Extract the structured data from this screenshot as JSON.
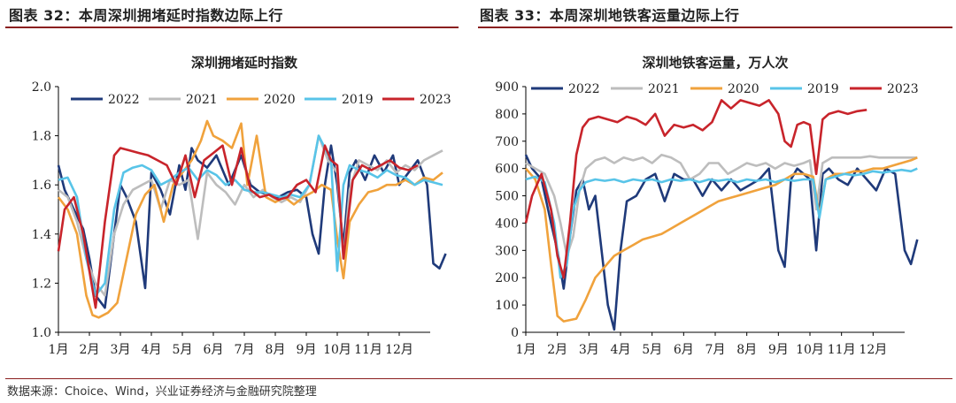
{
  "figure_left": {
    "header": "图表 32：本周深圳拥堵延时指数边际上行"
  },
  "figure_right": {
    "header": "图表 33：本周深圳地铁客运量边际上行"
  },
  "source": "数据来源：Choice、Wind，兴业证券经济与金融研究院整理",
  "chart_data": [
    {
      "type": "line",
      "title": "深圳拥堵延时指数",
      "xlabel": "",
      "ylabel": "",
      "ylim": [
        1.0,
        2.0
      ],
      "yticks": [
        "1.0",
        "1.2",
        "1.4",
        "1.6",
        "1.8",
        "2.0"
      ],
      "xticks": [
        "1月",
        "2月",
        "3月",
        "4月",
        "5月",
        "6月",
        "7月",
        "8月",
        "9月",
        "10月",
        "11月",
        "12月"
      ],
      "grid": false,
      "legend": "top",
      "series": [
        {
          "name": "2022",
          "color": "#1f3a7a",
          "x": [
            1,
            1.2,
            1.5,
            1.8,
            2.0,
            2.2,
            2.5,
            2.8,
            3.0,
            3.2,
            3.5,
            3.8,
            4.0,
            4.3,
            4.6,
            4.9,
            5.1,
            5.3,
            5.5,
            5.8,
            6.1,
            6.5,
            6.9,
            7.2,
            7.5,
            7.8,
            8.1,
            8.4,
            8.7,
            9.0,
            9.2,
            9.4,
            9.6,
            9.8,
            10.0,
            10.2,
            10.4,
            10.6,
            10.9,
            11.2,
            11.5,
            11.8,
            12.0,
            12.3,
            12.6,
            12.9,
            13.1,
            13.3,
            13.5
          ],
          "y": [
            1.68,
            1.58,
            1.5,
            1.42,
            1.3,
            1.15,
            1.1,
            1.4,
            1.6,
            1.55,
            1.45,
            1.18,
            1.65,
            1.58,
            1.48,
            1.68,
            1.58,
            1.75,
            1.7,
            1.67,
            1.72,
            1.6,
            1.72,
            1.6,
            1.57,
            1.56,
            1.55,
            1.57,
            1.58,
            1.55,
            1.4,
            1.32,
            1.6,
            1.76,
            1.6,
            1.35,
            1.65,
            1.7,
            1.62,
            1.72,
            1.65,
            1.72,
            1.6,
            1.65,
            1.7,
            1.6,
            1.28,
            1.26,
            1.32
          ]
        },
        {
          "name": "2021",
          "color": "#bdbdbd",
          "x": [
            1,
            1.3,
            1.6,
            1.9,
            2.2,
            2.5,
            2.8,
            3.1,
            3.4,
            3.7,
            4.0,
            4.3,
            4.6,
            4.9,
            5.2,
            5.5,
            5.8,
            6.1,
            6.4,
            6.7,
            7.0,
            7.3,
            7.6,
            7.9,
            8.2,
            8.5,
            8.8,
            9.1,
            9.4,
            9.7,
            10.0,
            10.2,
            10.4,
            10.7,
            11.0,
            11.3,
            11.6,
            11.9,
            12.2,
            12.5,
            12.8,
            13.1,
            13.4
          ],
          "y": [
            1.58,
            1.55,
            1.45,
            1.3,
            1.2,
            1.15,
            1.4,
            1.52,
            1.58,
            1.6,
            1.62,
            1.5,
            1.62,
            1.6,
            1.62,
            1.38,
            1.65,
            1.6,
            1.57,
            1.52,
            1.6,
            1.55,
            1.58,
            1.55,
            1.53,
            1.55,
            1.53,
            1.6,
            1.8,
            1.7,
            1.65,
            1.3,
            1.58,
            1.7,
            1.68,
            1.66,
            1.7,
            1.65,
            1.68,
            1.66,
            1.7,
            1.72,
            1.74
          ]
        },
        {
          "name": "2020",
          "color": "#f0a23c",
          "x": [
            1,
            1.3,
            1.6,
            1.9,
            2.1,
            2.3,
            2.6,
            2.9,
            3.2,
            3.5,
            3.8,
            4.1,
            4.4,
            4.7,
            5.0,
            5.3,
            5.6,
            5.8,
            6.0,
            6.3,
            6.6,
            6.9,
            7.1,
            7.4,
            7.7,
            8.0,
            8.3,
            8.6,
            8.9,
            9.2,
            9.5,
            9.8,
            10.0,
            10.2,
            10.4,
            10.7,
            11.0,
            11.3,
            11.6,
            11.9,
            12.2,
            12.5,
            12.8,
            13.1,
            13.4
          ],
          "y": [
            1.55,
            1.5,
            1.4,
            1.15,
            1.07,
            1.06,
            1.08,
            1.12,
            1.3,
            1.48,
            1.56,
            1.6,
            1.45,
            1.6,
            1.65,
            1.7,
            1.78,
            1.86,
            1.8,
            1.78,
            1.75,
            1.85,
            1.6,
            1.8,
            1.55,
            1.53,
            1.55,
            1.52,
            1.55,
            1.57,
            1.6,
            1.58,
            1.38,
            1.22,
            1.45,
            1.52,
            1.57,
            1.58,
            1.6,
            1.6,
            1.62,
            1.6,
            1.63,
            1.62,
            1.65
          ]
        },
        {
          "name": "2019",
          "color": "#58c4e8",
          "x": [
            1,
            1.3,
            1.6,
            1.9,
            2.2,
            2.5,
            2.8,
            3.1,
            3.4,
            3.7,
            4.0,
            4.3,
            4.6,
            4.9,
            5.2,
            5.5,
            5.8,
            6.1,
            6.4,
            6.7,
            7.0,
            7.3,
            7.6,
            7.9,
            8.2,
            8.5,
            8.8,
            9.1,
            9.4,
            9.6,
            9.8,
            10.0,
            10.2,
            10.4,
            10.7,
            11.0,
            11.3,
            11.6,
            11.9,
            12.2,
            12.5,
            12.8,
            13.1,
            13.4
          ],
          "y": [
            1.62,
            1.63,
            1.55,
            1.3,
            1.15,
            1.2,
            1.5,
            1.65,
            1.67,
            1.68,
            1.66,
            1.6,
            1.62,
            1.65,
            1.67,
            1.62,
            1.66,
            1.64,
            1.6,
            1.62,
            1.58,
            1.57,
            1.57,
            1.56,
            1.55,
            1.56,
            1.55,
            1.6,
            1.8,
            1.75,
            1.7,
            1.25,
            1.6,
            1.68,
            1.66,
            1.65,
            1.63,
            1.66,
            1.64,
            1.63,
            1.6,
            1.62,
            1.61,
            1.6
          ]
        },
        {
          "name": "2023",
          "color": "#c8242b",
          "x": [
            1,
            1.2,
            1.5,
            1.8,
            2.0,
            2.2,
            2.5,
            2.8,
            3.0,
            3.3,
            3.6,
            3.9,
            4.2,
            4.5,
            4.8,
            5.1,
            5.4,
            5.7,
            6.0,
            6.3,
            6.6,
            6.9,
            7.2,
            7.5,
            7.8,
            8.1,
            8.4,
            8.7,
            9.0,
            9.3,
            9.6,
            9.8,
            10.0,
            10.2,
            10.5,
            10.8,
            11.1,
            11.4,
            11.7,
            12.0,
            12.3,
            12.6
          ],
          "y": [
            1.33,
            1.5,
            1.55,
            1.4,
            1.25,
            1.1,
            1.45,
            1.72,
            1.75,
            1.74,
            1.73,
            1.72,
            1.7,
            1.68,
            1.6,
            1.72,
            1.55,
            1.7,
            1.73,
            1.76,
            1.6,
            1.75,
            1.58,
            1.55,
            1.56,
            1.54,
            1.55,
            1.6,
            1.62,
            1.57,
            1.76,
            1.7,
            1.68,
            1.3,
            1.62,
            1.68,
            1.66,
            1.68,
            1.7,
            1.67,
            1.66,
            1.68
          ]
        }
      ]
    },
    {
      "type": "line",
      "title": "深圳地铁客运量，万人次",
      "xlabel": "",
      "ylabel": "",
      "ylim": [
        0,
        900
      ],
      "yticks": [
        "0",
        "100",
        "200",
        "300",
        "400",
        "500",
        "600",
        "700",
        "800",
        "900"
      ],
      "xticks": [
        "1月",
        "2月",
        "3月",
        "4月",
        "5月",
        "6月",
        "7月",
        "8月",
        "9月",
        "10月",
        "11月",
        "12月"
      ],
      "grid": false,
      "legend": "top",
      "series": [
        {
          "name": "2022",
          "color": "#1f3a7a",
          "x": [
            1,
            1.2,
            1.5,
            1.8,
            2.0,
            2.2,
            2.4,
            2.6,
            2.8,
            3.0,
            3.2,
            3.4,
            3.6,
            3.8,
            4.0,
            4.2,
            4.5,
            4.8,
            5.1,
            5.4,
            5.7,
            6.0,
            6.3,
            6.6,
            6.9,
            7.2,
            7.5,
            7.8,
            8.1,
            8.4,
            8.7,
            9.0,
            9.2,
            9.4,
            9.6,
            9.8,
            10.0,
            10.2,
            10.4,
            10.6,
            10.9,
            11.2,
            11.5,
            11.8,
            12.1,
            12.4,
            12.7,
            13.0,
            13.2,
            13.4
          ],
          "y": [
            650,
            600,
            560,
            400,
            300,
            160,
            350,
            520,
            560,
            450,
            500,
            300,
            100,
            10,
            300,
            480,
            500,
            560,
            580,
            480,
            580,
            560,
            560,
            500,
            560,
            520,
            560,
            520,
            540,
            560,
            600,
            300,
            240,
            560,
            600,
            580,
            560,
            300,
            580,
            600,
            560,
            540,
            600,
            560,
            520,
            600,
            580,
            300,
            250,
            340
          ]
        },
        {
          "name": "2021",
          "color": "#bdbdbd",
          "x": [
            1,
            1.3,
            1.6,
            1.9,
            2.1,
            2.3,
            2.5,
            2.7,
            2.9,
            3.2,
            3.5,
            3.8,
            4.1,
            4.4,
            4.7,
            5.0,
            5.3,
            5.6,
            5.9,
            6.2,
            6.5,
            6.8,
            7.1,
            7.4,
            7.7,
            8.0,
            8.3,
            8.6,
            8.9,
            9.2,
            9.5,
            9.8,
            10.0,
            10.2,
            10.4,
            10.7,
            11.0,
            11.3,
            11.6,
            11.9,
            12.2,
            12.5,
            12.8,
            13.1,
            13.4
          ],
          "y": [
            620,
            600,
            580,
            500,
            400,
            280,
            350,
            520,
            600,
            630,
            640,
            620,
            640,
            630,
            640,
            620,
            650,
            640,
            620,
            560,
            580,
            620,
            620,
            580,
            600,
            620,
            610,
            620,
            600,
            620,
            610,
            620,
            630,
            450,
            620,
            640,
            640,
            640,
            640,
            645,
            640,
            640,
            640,
            640,
            640
          ]
        },
        {
          "name": "2020",
          "color": "#f0a23c",
          "x": [
            1,
            1.3,
            1.6,
            1.8,
            2.0,
            2.2,
            2.4,
            2.6,
            2.9,
            3.2,
            3.5,
            3.8,
            4.1,
            4.4,
            4.7,
            5.0,
            5.3,
            5.6,
            5.9,
            6.2,
            6.5,
            6.8,
            7.1,
            7.4,
            7.7,
            8.0,
            8.3,
            8.6,
            8.9,
            9.2,
            9.5,
            9.8,
            10.1,
            10.3,
            10.5,
            10.8,
            11.1,
            11.4,
            11.7,
            12.0,
            12.3,
            12.6,
            12.9,
            13.2,
            13.4
          ],
          "y": [
            600,
            560,
            450,
            250,
            60,
            40,
            45,
            50,
            120,
            200,
            240,
            280,
            300,
            320,
            340,
            350,
            360,
            380,
            400,
            420,
            440,
            460,
            480,
            490,
            500,
            510,
            520,
            530,
            540,
            560,
            580,
            580,
            570,
            430,
            560,
            580,
            580,
            590,
            590,
            600,
            600,
            610,
            620,
            630,
            640
          ]
        },
        {
          "name": "2019",
          "color": "#58c4e8",
          "x": [
            1,
            1.3,
            1.6,
            1.9,
            2.1,
            2.3,
            2.5,
            2.7,
            2.9,
            3.2,
            3.5,
            3.8,
            4.1,
            4.4,
            4.7,
            5.0,
            5.3,
            5.6,
            5.9,
            6.2,
            6.5,
            6.8,
            7.1,
            7.4,
            7.7,
            8.0,
            8.3,
            8.6,
            8.9,
            9.2,
            9.5,
            9.8,
            10.1,
            10.3,
            10.5,
            10.8,
            11.1,
            11.4,
            11.7,
            12.0,
            12.3,
            12.6,
            12.9,
            13.2,
            13.4
          ],
          "y": [
            560,
            570,
            550,
            400,
            200,
            250,
            450,
            520,
            550,
            560,
            555,
            560,
            550,
            560,
            555,
            560,
            550,
            560,
            555,
            560,
            550,
            560,
            555,
            560,
            550,
            560,
            555,
            560,
            550,
            560,
            555,
            560,
            560,
            420,
            560,
            570,
            580,
            575,
            580,
            590,
            585,
            590,
            595,
            590,
            600
          ]
        },
        {
          "name": "2023",
          "color": "#c8242b",
          "x": [
            1,
            1.2,
            1.5,
            1.8,
            2.0,
            2.2,
            2.4,
            2.6,
            2.8,
            3.0,
            3.3,
            3.6,
            3.9,
            4.2,
            4.5,
            4.8,
            5.1,
            5.4,
            5.7,
            6.0,
            6.3,
            6.6,
            6.9,
            7.2,
            7.5,
            7.8,
            8.1,
            8.4,
            8.7,
            9.0,
            9.2,
            9.4,
            9.6,
            9.8,
            10.0,
            10.2,
            10.4,
            10.6,
            10.9,
            11.2,
            11.5,
            11.8
          ],
          "y": [
            400,
            500,
            580,
            450,
            280,
            200,
            400,
            650,
            750,
            780,
            790,
            780,
            770,
            790,
            780,
            760,
            800,
            720,
            760,
            750,
            760,
            740,
            770,
            850,
            820,
            850,
            840,
            830,
            850,
            800,
            700,
            680,
            760,
            770,
            760,
            580,
            780,
            800,
            810,
            800,
            810,
            815
          ]
        }
      ]
    }
  ]
}
